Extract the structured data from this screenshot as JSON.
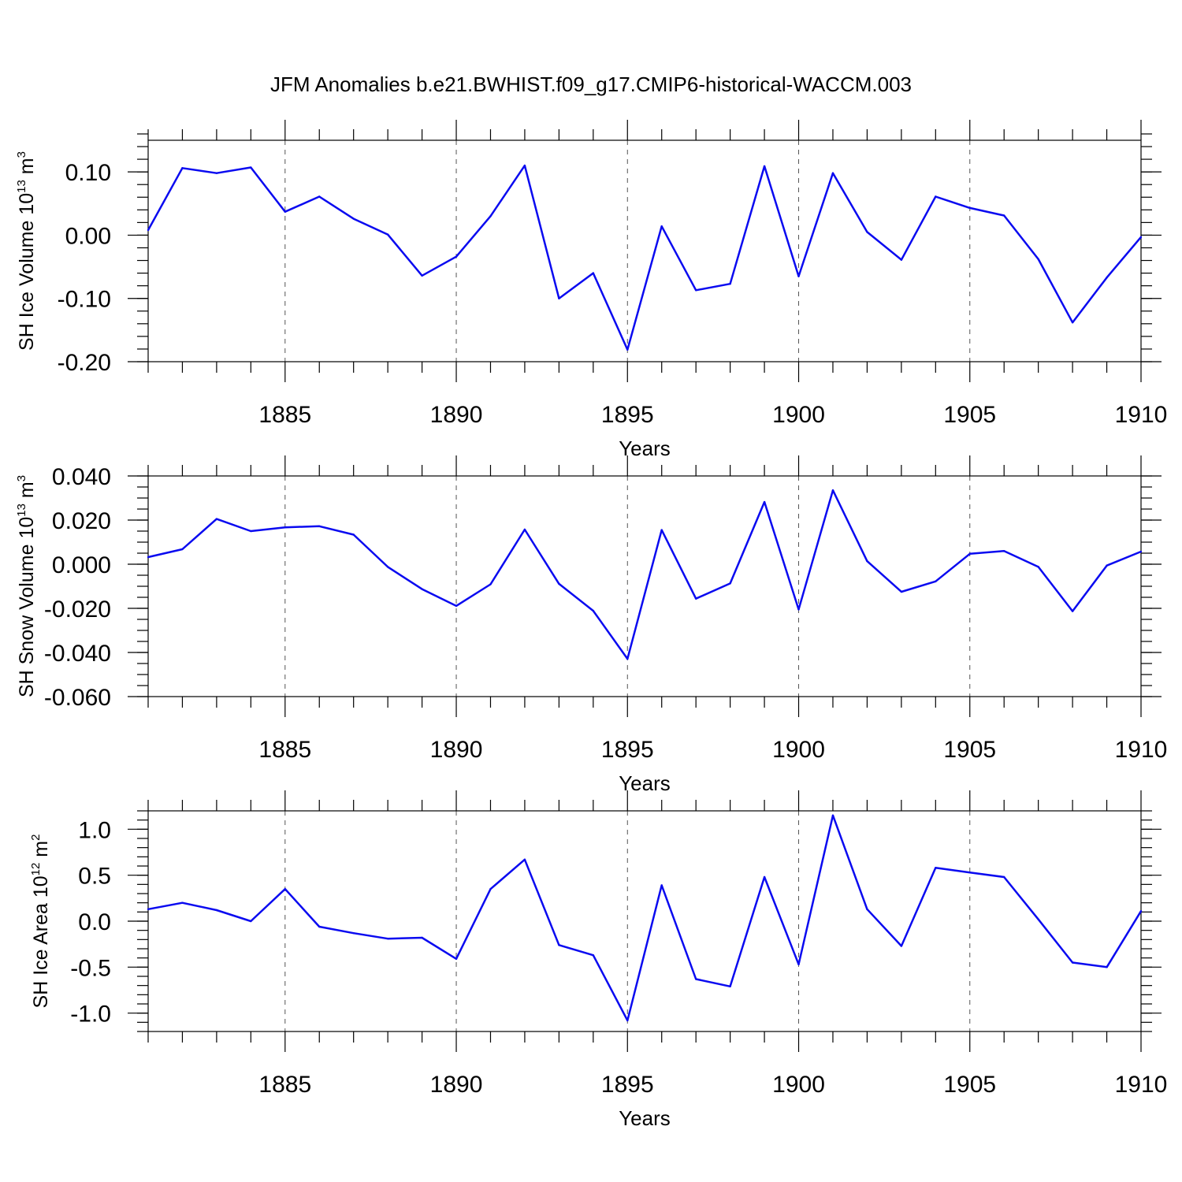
{
  "title": "JFM Anomalies b.e21.BWHIST.f09_g17.CMIP6-historical-WACCM.003",
  "line_color": "#0a0af0",
  "chart_data": [
    {
      "type": "line",
      "title": "JFM Anomalies b.e21.BWHIST.f09_g17.CMIP6-historical-WACCM.003",
      "xlabel": "Years",
      "ylabel": {
        "base": "SH Ice Volume 10",
        "exp1": "13",
        "mid": " m",
        "exp2": "3"
      },
      "xlim": [
        1881,
        1910
      ],
      "ylim": [
        -0.2,
        0.15
      ],
      "xticks": [
        1885,
        1890,
        1895,
        1900,
        1905,
        1910
      ],
      "xtick_labels": [
        "1885",
        "1890",
        "1895",
        "1900",
        "1905",
        "1910"
      ],
      "yticks": [
        -0.2,
        -0.1,
        0.0,
        0.1
      ],
      "ytick_labels": [
        "-0.20",
        "-0.10",
        "0.00",
        "0.10"
      ],
      "grid": "vertical dashed at major x ticks",
      "x": [
        1881,
        1882,
        1883,
        1884,
        1885,
        1886,
        1887,
        1888,
        1889,
        1890,
        1891,
        1892,
        1893,
        1894,
        1895,
        1896,
        1897,
        1898,
        1899,
        1900,
        1901,
        1902,
        1903,
        1904,
        1905,
        1906,
        1907,
        1908,
        1909,
        1910
      ],
      "values": [
        0.008,
        0.106,
        0.098,
        0.107,
        0.037,
        0.061,
        0.026,
        0.001,
        -0.064,
        -0.034,
        0.03,
        0.11,
        -0.1,
        -0.06,
        -0.181,
        0.014,
        -0.087,
        -0.077,
        0.109,
        -0.065,
        0.098,
        0.005,
        -0.039,
        0.061,
        0.043,
        0.031,
        -0.038,
        -0.138,
        -0.067,
        -0.003
      ]
    },
    {
      "type": "line",
      "xlabel": "Years",
      "ylabel": {
        "base": "SH Snow Volume 10",
        "exp1": "13",
        "mid": " m",
        "exp2": "3"
      },
      "xlim": [
        1881,
        1910
      ],
      "ylim": [
        -0.06,
        0.04
      ],
      "xticks": [
        1885,
        1890,
        1895,
        1900,
        1905,
        1910
      ],
      "xtick_labels": [
        "1885",
        "1890",
        "1895",
        "1900",
        "1905",
        "1910"
      ],
      "yticks": [
        -0.06,
        -0.04,
        -0.02,
        0.0,
        0.02,
        0.04
      ],
      "ytick_labels": [
        "-0.060",
        "-0.040",
        "-0.020",
        "0.000",
        "0.020",
        "0.040"
      ],
      "grid": "vertical dashed at major x ticks",
      "x": [
        1881,
        1882,
        1883,
        1884,
        1885,
        1886,
        1887,
        1888,
        1889,
        1890,
        1891,
        1892,
        1893,
        1894,
        1895,
        1896,
        1897,
        1898,
        1899,
        1900,
        1901,
        1902,
        1903,
        1904,
        1905,
        1906,
        1907,
        1908,
        1909,
        1910
      ],
      "values": [
        0.0032,
        0.0068,
        0.0205,
        0.015,
        0.0167,
        0.0172,
        0.0134,
        -0.0012,
        -0.0113,
        -0.0189,
        -0.0091,
        0.0157,
        -0.0089,
        -0.0211,
        -0.0429,
        0.0155,
        -0.0156,
        -0.0087,
        0.0282,
        -0.0205,
        0.0335,
        0.0014,
        -0.0125,
        -0.0078,
        0.0047,
        0.006,
        -0.0012,
        -0.0213,
        -0.0006,
        0.0057
      ]
    },
    {
      "type": "line",
      "xlabel": "Years",
      "ylabel": {
        "base": "SH Ice Area 10",
        "exp1": "12",
        "mid": " m",
        "exp2": "2"
      },
      "xlim": [
        1881,
        1910
      ],
      "ylim": [
        -1.2,
        1.2
      ],
      "xticks": [
        1885,
        1890,
        1895,
        1900,
        1905,
        1910
      ],
      "xtick_labels": [
        "1885",
        "1890",
        "1895",
        "1900",
        "1905",
        "1910"
      ],
      "yticks": [
        -1.0,
        -0.5,
        0.0,
        0.5,
        1.0
      ],
      "ytick_labels": [
        "-1.0",
        "-0.5",
        "0.0",
        "0.5",
        "1.0"
      ],
      "grid": "vertical dashed at major x ticks",
      "x": [
        1881,
        1882,
        1883,
        1884,
        1885,
        1886,
        1887,
        1888,
        1889,
        1890,
        1891,
        1892,
        1893,
        1894,
        1895,
        1896,
        1897,
        1898,
        1899,
        1900,
        1901,
        1902,
        1903,
        1904,
        1905,
        1906,
        1907,
        1908,
        1909,
        1910
      ],
      "values": [
        0.13,
        0.2,
        0.12,
        0.0,
        0.35,
        -0.06,
        -0.13,
        -0.19,
        -0.18,
        -0.41,
        0.35,
        0.67,
        -0.26,
        -0.37,
        -1.08,
        0.39,
        -0.63,
        -0.71,
        0.48,
        -0.47,
        1.15,
        0.13,
        -0.27,
        0.58,
        0.53,
        0.48,
        0.02,
        -0.45,
        -0.5,
        0.11
      ]
    }
  ]
}
